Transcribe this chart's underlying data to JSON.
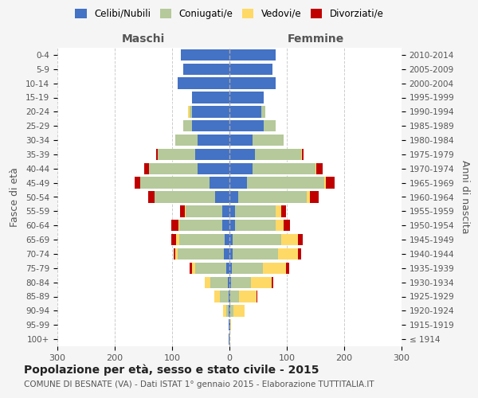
{
  "age_groups": [
    "100+",
    "95-99",
    "90-94",
    "85-89",
    "80-84",
    "75-79",
    "70-74",
    "65-69",
    "60-64",
    "55-59",
    "50-54",
    "45-49",
    "40-44",
    "35-39",
    "30-34",
    "25-29",
    "20-24",
    "15-19",
    "10-14",
    "5-9",
    "0-4"
  ],
  "birth_years": [
    "≤ 1914",
    "1915-1919",
    "1920-1924",
    "1925-1929",
    "1930-1934",
    "1935-1939",
    "1940-1944",
    "1945-1949",
    "1950-1954",
    "1955-1959",
    "1960-1964",
    "1965-1969",
    "1970-1974",
    "1975-1979",
    "1980-1984",
    "1985-1989",
    "1990-1994",
    "1995-1999",
    "2000-2004",
    "2005-2009",
    "2010-2014"
  ],
  "colors": {
    "celibi": "#4472C4",
    "coniugati": "#B5C99A",
    "vedovi": "#FFD966",
    "divorziati": "#C00000"
  },
  "males": {
    "celibi": [
      1,
      1,
      1,
      2,
      3,
      5,
      10,
      8,
      12,
      12,
      25,
      35,
      55,
      60,
      55,
      65,
      65,
      65,
      90,
      80,
      85
    ],
    "coniugati": [
      0,
      0,
      5,
      15,
      30,
      55,
      80,
      80,
      75,
      65,
      105,
      120,
      85,
      65,
      40,
      15,
      5,
      0,
      0,
      0,
      0
    ],
    "vedovi": [
      0,
      1,
      5,
      10,
      10,
      5,
      5,
      5,
      2,
      1,
      1,
      0,
      0,
      0,
      0,
      0,
      2,
      0,
      0,
      0,
      0
    ],
    "divorziati": [
      0,
      0,
      0,
      0,
      0,
      5,
      2,
      8,
      12,
      8,
      10,
      10,
      8,
      3,
      0,
      0,
      0,
      0,
      0,
      0,
      0
    ]
  },
  "females": {
    "nubili": [
      0,
      1,
      2,
      2,
      3,
      4,
      5,
      5,
      10,
      10,
      15,
      30,
      40,
      45,
      40,
      60,
      55,
      60,
      80,
      75,
      80
    ],
    "coniugate": [
      0,
      0,
      5,
      15,
      35,
      55,
      80,
      85,
      70,
      70,
      120,
      135,
      110,
      80,
      55,
      20,
      8,
      0,
      0,
      0,
      0
    ],
    "vedove": [
      1,
      2,
      20,
      30,
      35,
      40,
      35,
      30,
      15,
      10,
      5,
      3,
      2,
      1,
      0,
      0,
      0,
      0,
      0,
      0,
      0
    ],
    "divorziate": [
      0,
      0,
      0,
      2,
      3,
      5,
      5,
      8,
      10,
      8,
      15,
      15,
      10,
      3,
      0,
      0,
      0,
      0,
      0,
      0,
      0
    ]
  },
  "title": "Popolazione per età, sesso e stato civile - 2015",
  "subtitle": "COMUNE DI BESNATE (VA) - Dati ISTAT 1° gennaio 2015 - Elaborazione TUTTITALIA.IT",
  "ylabel_left": "Fasce di età",
  "ylabel_right": "Anni di nascita",
  "xlabel_left": "Maschi",
  "xlabel_right": "Femmine",
  "xlim": 300,
  "background_color": "#f5f5f5",
  "plot_background": "#ffffff"
}
